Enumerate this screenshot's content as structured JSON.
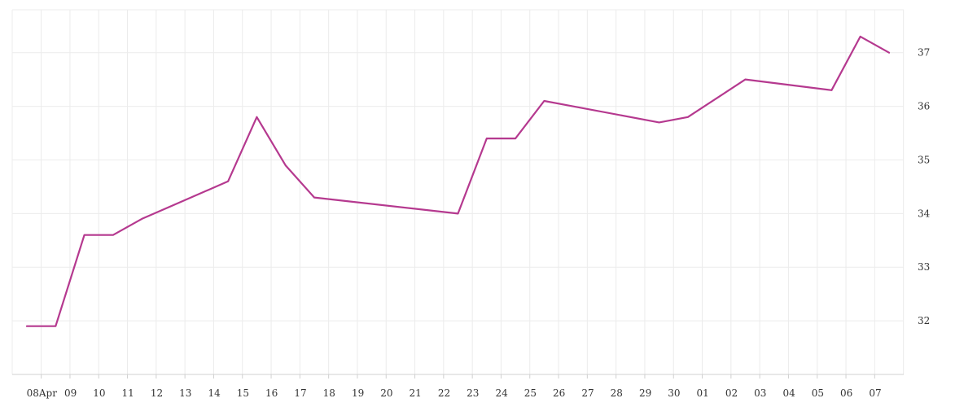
{
  "chart_data": {
    "type": "line",
    "title": "",
    "xlabel": "",
    "ylabel": "",
    "x": [
      "2024-04-07",
      "2024-04-08",
      "2024-04-09",
      "2024-04-10",
      "2024-04-11",
      "2024-04-14",
      "2024-04-15",
      "2024-04-16",
      "2024-04-17",
      "2024-04-22",
      "2024-04-23",
      "2024-04-24",
      "2024-04-25",
      "2024-04-29",
      "2024-04-30",
      "2024-05-02",
      "2024-05-05",
      "2024-05-06",
      "2024-05-07"
    ],
    "series": [
      {
        "values": [
          31.9,
          31.9,
          33.6,
          33.6,
          33.9,
          34.6,
          35.8,
          34.9,
          34.3,
          34.0,
          35.4,
          35.4,
          36.1,
          35.7,
          35.8,
          36.5,
          36.3,
          37.3,
          37.0
        ]
      }
    ],
    "x_tick_labels": [
      "08Apr",
      "09",
      "10",
      "11",
      "12",
      "13",
      "14",
      "15",
      "16",
      "17",
      "18",
      "19",
      "20",
      "21",
      "22",
      "23",
      "24",
      "25",
      "26",
      "27",
      "28",
      "29",
      "30",
      "01",
      "02",
      "03",
      "04",
      "05",
      "06",
      "07"
    ],
    "y_ticks": [
      32,
      33,
      34,
      35,
      36,
      37
    ],
    "ylim": [
      31,
      37.8
    ],
    "grid": true,
    "y_axis_position": "right",
    "line_color": "#b5398f"
  }
}
